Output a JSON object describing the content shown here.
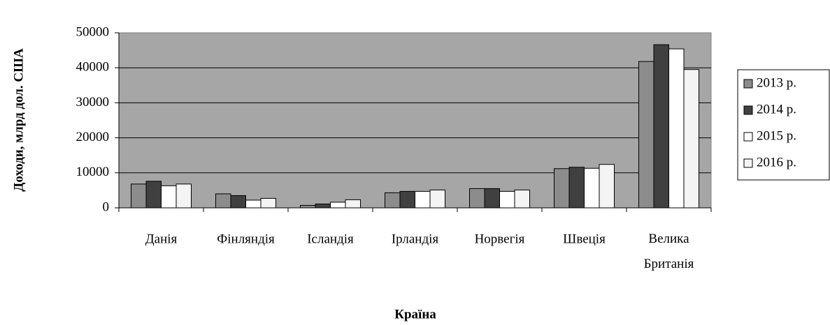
{
  "chart_data": {
    "type": "bar",
    "x_label": "Країна",
    "y_label": "Доходи, млрд дол. США",
    "categories": [
      "Данія",
      "Фінляндія",
      "Ісландія",
      "Ірландія",
      "Норвегія",
      "Швеція",
      "Велика Британія"
    ],
    "series": [
      {
        "name": "2013 р.",
        "color": "#8c8c8c",
        "values": [
          6800,
          4000,
          700,
          4300,
          5500,
          11200,
          41800
        ]
      },
      {
        "name": "2014 р.",
        "color": "#404040",
        "values": [
          7600,
          3500,
          1100,
          4700,
          5500,
          11600,
          46600
        ]
      },
      {
        "name": "2015 р.",
        "color": "#ffffff",
        "values": [
          6300,
          2200,
          1600,
          4700,
          4700,
          11300,
          45400
        ]
      },
      {
        "name": "2016 р.",
        "color": "#f4f4f4",
        "values": [
          6800,
          2700,
          2300,
          5100,
          5100,
          12400,
          39500
        ]
      }
    ],
    "ylim": [
      0,
      50000
    ],
    "yticks": [
      0,
      10000,
      20000,
      30000,
      40000,
      50000
    ],
    "grid": true,
    "legend": "right"
  }
}
